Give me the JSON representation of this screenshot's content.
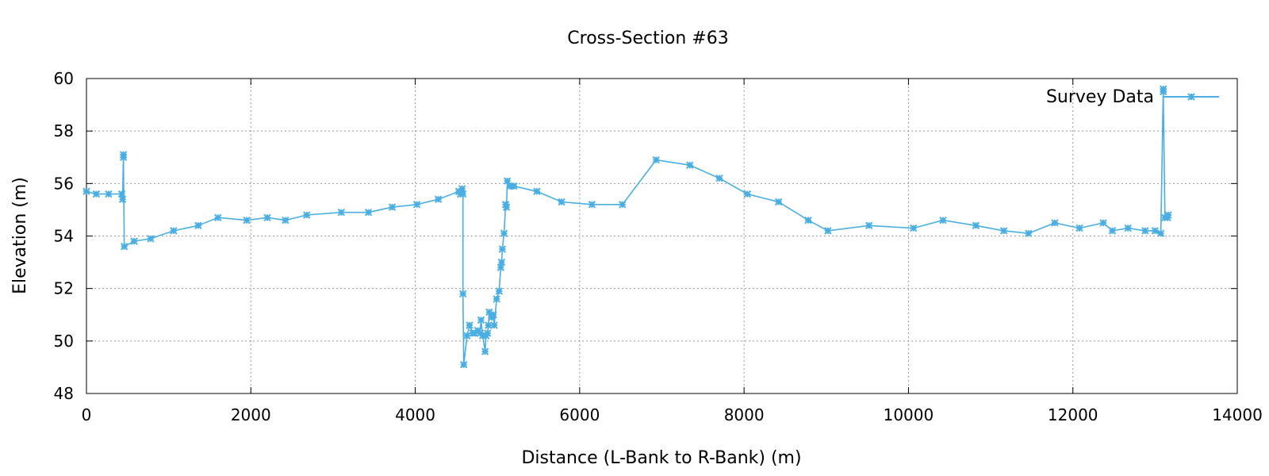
{
  "chart_data": {
    "type": "line",
    "title": "Cross-Section #63",
    "xlabel": "Distance (L-Bank to R-Bank) (m)",
    "ylabel": "Elevation (m)",
    "xlim": [
      0,
      14000
    ],
    "ylim": [
      48,
      60
    ],
    "xticks": [
      0,
      2000,
      4000,
      6000,
      8000,
      10000,
      12000,
      14000
    ],
    "yticks": [
      48,
      50,
      52,
      54,
      56,
      58,
      60
    ],
    "grid": true,
    "legend_position": "top-right",
    "color": "#4baee3",
    "marker": "x-star",
    "series": [
      {
        "name": "Survey Data",
        "x": [
          0,
          120,
          270,
          430,
          440,
          450,
          450,
          460,
          580,
          780,
          1060,
          1360,
          1600,
          1950,
          2200,
          2420,
          2680,
          3100,
          3430,
          3720,
          4020,
          4280,
          4530,
          4550,
          4570,
          4580,
          4580,
          4590,
          4630,
          4660,
          4700,
          4720,
          4760,
          4790,
          4800,
          4820,
          4850,
          4860,
          4880,
          4890,
          4900,
          4930,
          4950,
          4960,
          4990,
          5020,
          5040,
          5050,
          5060,
          5080,
          5100,
          5110,
          5120,
          5150,
          5200,
          5480,
          5780,
          6150,
          6520,
          6930,
          7340,
          7700,
          8040,
          8420,
          8780,
          9020,
          9520,
          10060,
          10420,
          10820,
          11160,
          11460,
          11780,
          12080,
          12370,
          12480,
          12670,
          12880,
          13000,
          13070,
          13100,
          13100,
          13120,
          13150,
          13160
        ],
        "y": [
          55.7,
          55.6,
          55.6,
          55.6,
          55.4,
          57.1,
          57.0,
          53.6,
          53.8,
          53.9,
          54.2,
          54.4,
          54.7,
          54.6,
          54.7,
          54.6,
          54.8,
          54.9,
          54.9,
          55.1,
          55.2,
          55.4,
          55.7,
          55.6,
          55.8,
          55.6,
          51.8,
          49.1,
          50.2,
          50.6,
          50.3,
          50.3,
          50.4,
          50.3,
          50.8,
          50.2,
          49.6,
          50.2,
          50.3,
          50.6,
          51.1,
          50.9,
          51.0,
          50.6,
          51.6,
          51.9,
          52.8,
          53.0,
          53.5,
          54.1,
          55.2,
          55.1,
          56.1,
          55.9,
          55.9,
          55.7,
          55.3,
          55.2,
          55.2,
          56.9,
          56.7,
          56.2,
          55.6,
          55.3,
          54.6,
          54.2,
          54.4,
          54.3,
          54.6,
          54.4,
          54.2,
          54.1,
          54.5,
          54.3,
          54.5,
          54.2,
          54.3,
          54.2,
          54.2,
          54.1,
          59.6,
          59.5,
          54.7,
          54.7,
          54.8
        ]
      }
    ]
  }
}
